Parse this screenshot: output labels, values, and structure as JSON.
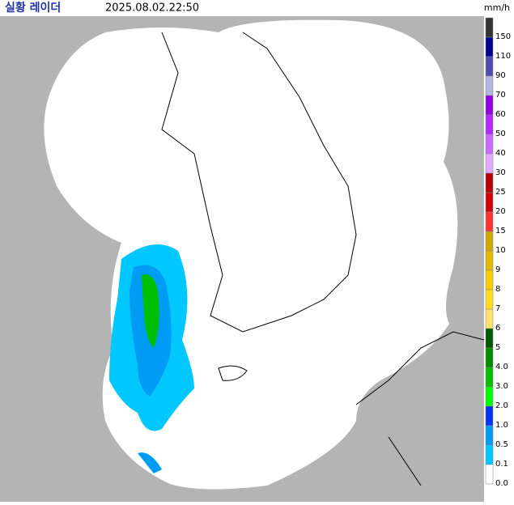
{
  "header": {
    "title": "실황 레이더",
    "time": "2025.08.02.22:50"
  },
  "legend": {
    "unit": "mm/h",
    "items": [
      {
        "label": "150",
        "color": "#333333"
      },
      {
        "label": "110",
        "color": "#000390"
      },
      {
        "label": "90",
        "color": "#4c4eb1"
      },
      {
        "label": "70",
        "color": "#b3b4de"
      },
      {
        "label": "60",
        "color": "#9300e4"
      },
      {
        "label": "50",
        "color": "#b329ff"
      },
      {
        "label": "40",
        "color": "#c969ff"
      },
      {
        "label": "30",
        "color": "#e0a9ff"
      },
      {
        "label": "25",
        "color": "#b4000a"
      },
      {
        "label": "20",
        "color": "#d2000c"
      },
      {
        "label": "15",
        "color": "#ff3232"
      },
      {
        "label": "10",
        "color": "#ccaa00"
      },
      {
        "label": "9",
        "color": "#e0b900"
      },
      {
        "label": "8",
        "color": "#f9cd00"
      },
      {
        "label": "7",
        "color": "#ffdc1f"
      },
      {
        "label": "6",
        "color": "#ffe16e"
      },
      {
        "label": "5",
        "color": "#005a00"
      },
      {
        "label": "4.0",
        "color": "#008c00"
      },
      {
        "label": "3.0",
        "color": "#00be00"
      },
      {
        "label": "2.0",
        "color": "#00ff00"
      },
      {
        "label": "1.0",
        "color": "#0033f5"
      },
      {
        "label": "0.5",
        "color": "#009bf5"
      },
      {
        "label": "0.1",
        "color": "#00c8ff"
      },
      {
        "label": "0.0",
        "color": "#ffffff"
      }
    ]
  }
}
